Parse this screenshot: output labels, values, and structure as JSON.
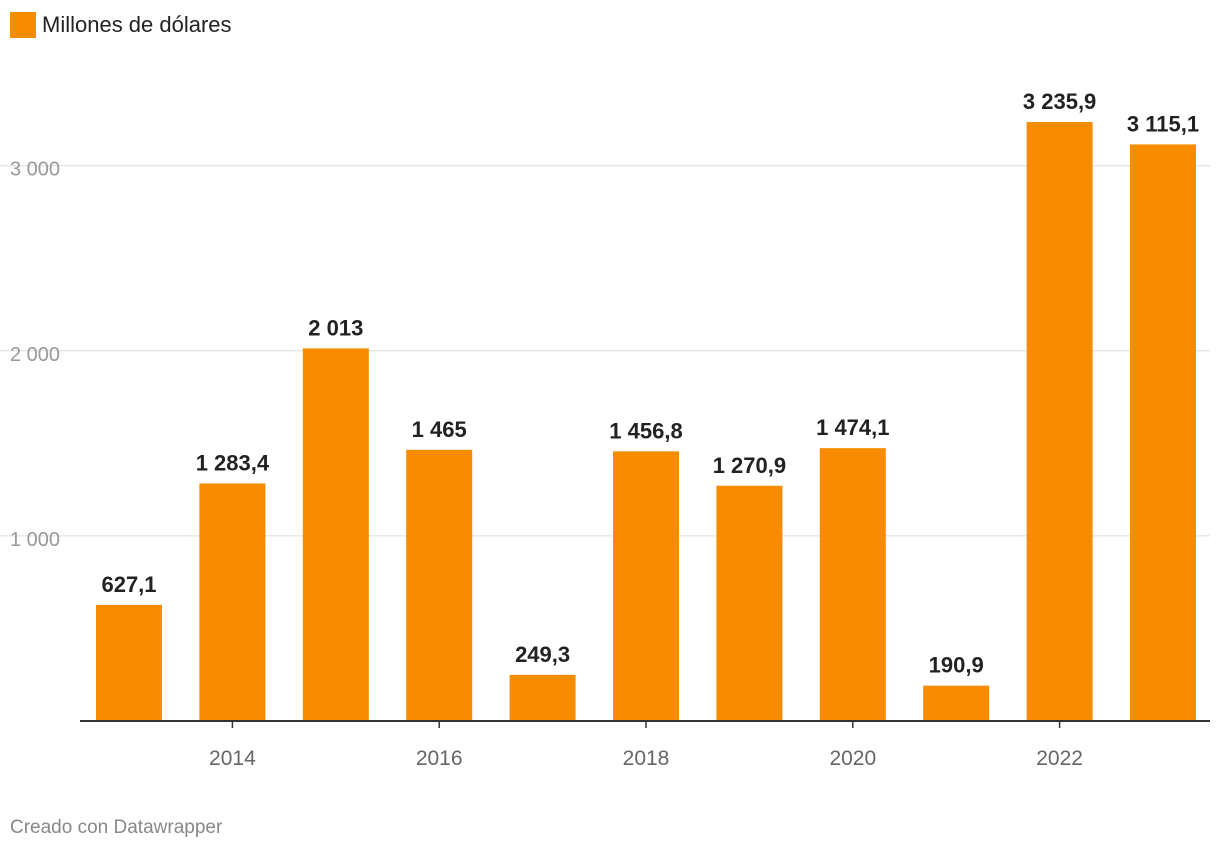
{
  "legend": {
    "label": "Millones de dólares",
    "color": "#f78c00"
  },
  "chart_data": {
    "type": "bar",
    "years": [
      2013,
      2014,
      2015,
      2016,
      2017,
      2018,
      2019,
      2020,
      2021,
      2022,
      2023
    ],
    "values": [
      627.1,
      1283.4,
      2013,
      1465,
      249.3,
      1456.8,
      1270.9,
      1474.1,
      190.9,
      3235.9,
      3115.1
    ],
    "value_labels": [
      "627,1",
      "1 283,4",
      "2 013",
      "1 465",
      "249,3",
      "1 456,8",
      "1 270,9",
      "1 474,1",
      "190,9",
      "3 235,9",
      "3 115,1"
    ],
    "x_ticks": [
      "2014",
      "2016",
      "2018",
      "2020",
      "2022"
    ],
    "x_tick_years": [
      2014,
      2016,
      2018,
      2020,
      2022
    ],
    "y_ticks": [
      1000,
      2000,
      3000
    ],
    "y_tick_labels": [
      "1 000",
      "2 000",
      "3 000"
    ],
    "ylim": [
      0,
      3500
    ],
    "bar_color": "#f78c00",
    "grid": true,
    "title": "",
    "xlabel": "",
    "ylabel": "Millones de dólares"
  },
  "footer": {
    "credit": "Creado con Datawrapper"
  }
}
